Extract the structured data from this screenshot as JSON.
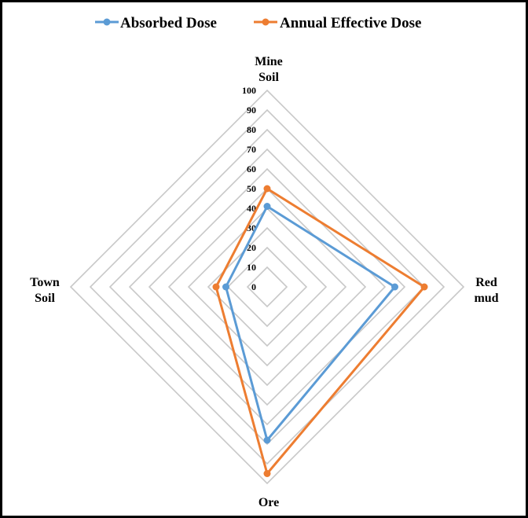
{
  "chart_data": {
    "type": "radar",
    "categories": [
      [
        "Mine",
        "Soil"
      ],
      [
        "Red",
        "mud"
      ],
      [
        "Ore"
      ],
      [
        "Town",
        "Soil"
      ]
    ],
    "series": [
      {
        "name": "Absorbed Dose",
        "color": "#5B9BD5",
        "values": [
          41,
          65,
          78,
          21
        ]
      },
      {
        "name": "Annual Effective Dose",
        "color": "#ED7D31",
        "values": [
          50,
          80,
          95,
          26
        ]
      }
    ],
    "r_ticks": [
      0,
      10,
      20,
      30,
      40,
      50,
      60,
      70,
      80,
      90,
      100
    ],
    "r_range": [
      0,
      100
    ],
    "grid": true,
    "grid_color": "#C8C8C8",
    "legend_position": "top"
  }
}
